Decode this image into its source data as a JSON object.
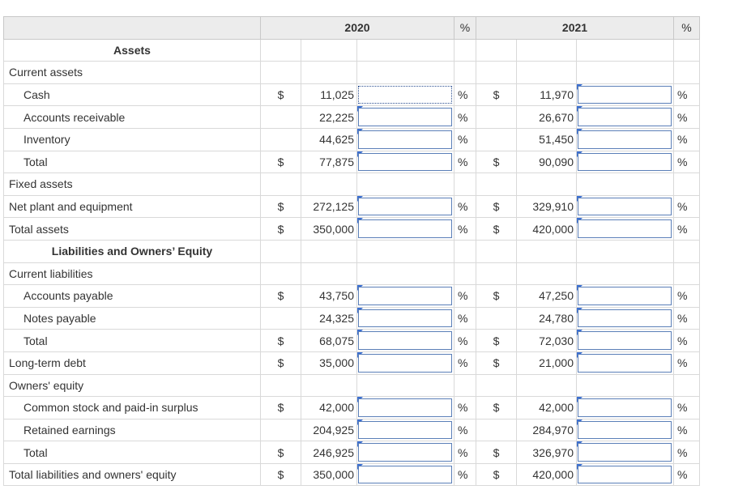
{
  "headers": {
    "year1": "2020",
    "year2": "2021",
    "pct": "%"
  },
  "sections": {
    "assets": "Assets",
    "current_assets": "Current assets",
    "fixed_assets": "Fixed assets",
    "liabilities_equity": "Liabilities and Owners’ Equity",
    "current_liabilities": "Current liabilities",
    "owners_equity": "Owners' equity"
  },
  "currency": "$",
  "rows": {
    "cash": {
      "label": "Cash",
      "v2020": "11,025",
      "v2021": "11,970"
    },
    "accounts_receivable": {
      "label": "Accounts receivable",
      "v2020": "22,225",
      "v2021": "26,670"
    },
    "inventory": {
      "label": "Inventory",
      "v2020": "44,625",
      "v2021": "51,450"
    },
    "total_current_assets": {
      "label": "Total",
      "v2020": "77,875",
      "v2021": "90,090"
    },
    "net_plant": {
      "label": "Net plant and equipment",
      "v2020": "272,125",
      "v2021": "329,910"
    },
    "total_assets": {
      "label": "Total assets",
      "v2020": "350,000",
      "v2021": "420,000"
    },
    "accounts_payable": {
      "label": "Accounts payable",
      "v2020": "43,750",
      "v2021": "47,250"
    },
    "notes_payable": {
      "label": "Notes payable",
      "v2020": "24,325",
      "v2021": "24,780"
    },
    "total_current_liabilities": {
      "label": "Total",
      "v2020": "68,075",
      "v2021": "72,030"
    },
    "long_term_debt": {
      "label": "Long-term debt",
      "v2020": "35,000",
      "v2021": "21,000"
    },
    "common_stock": {
      "label": "Common stock and paid-in surplus",
      "v2020": "42,000",
      "v2021": "42,000"
    },
    "retained_earnings": {
      "label": "Retained earnings",
      "v2020": "204,925",
      "v2021": "284,970"
    },
    "total_equity": {
      "label": "Total",
      "v2020": "246,925",
      "v2021": "326,970"
    },
    "total_liab_equity": {
      "label": "Total liabilities and owners' equity",
      "v2020": "350,000",
      "v2021": "420,000"
    }
  }
}
